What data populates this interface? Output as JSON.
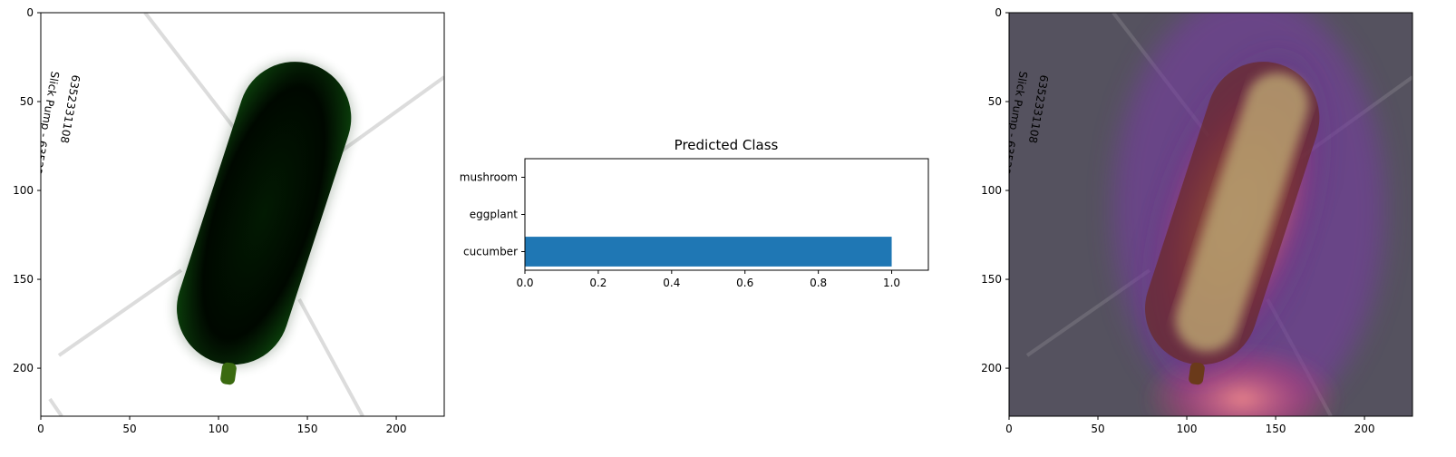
{
  "chart_data": [
    {
      "type": "image",
      "subject": "cucumber photo (high contrast, dark green on white)",
      "xlim": [
        0,
        227
      ],
      "ylim": [
        227,
        0
      ],
      "xticks": [
        0,
        50,
        100,
        150,
        200
      ],
      "yticks": [
        0,
        50,
        100,
        150,
        200
      ],
      "annotations": [
        "cucumber",
        "image"
      ]
    },
    {
      "type": "bar",
      "orientation": "horizontal",
      "title": "Predicted Class",
      "categories": [
        "cucumber",
        "eggplant",
        "mushroom"
      ],
      "values": [
        1.0,
        0.0,
        0.0
      ],
      "xlim": [
        0,
        1.1
      ],
      "xticks": [
        "0.0",
        "0.2",
        "0.4",
        "0.6",
        "0.8",
        "1.0"
      ],
      "bar_color": "#1f77b4"
    },
    {
      "type": "heatmap",
      "subject": "class activation heatmap overlay on cucumber photo",
      "colormap": "magma",
      "xlim": [
        0,
        227
      ],
      "ylim": [
        227,
        0
      ],
      "xticks": [
        0,
        50,
        100,
        150,
        200
      ],
      "yticks": [
        0,
        50,
        100,
        150,
        200
      ],
      "annotations": [
        "cucumber",
        "heatmap"
      ]
    }
  ]
}
